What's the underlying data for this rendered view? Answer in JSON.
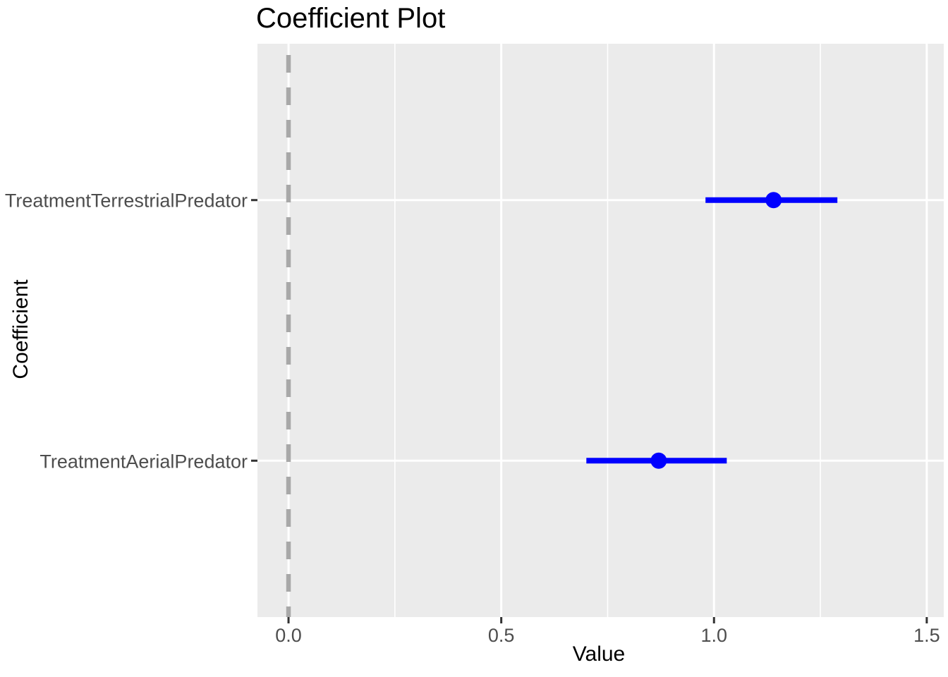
{
  "chart_data": {
    "type": "scatter",
    "variant": "coefficient-plot-with-error-bars",
    "title": "Coefficient Plot",
    "xlabel": "Value",
    "ylabel": "Coefficient",
    "categories": [
      "TreatmentTerrestrialPredator",
      "TreatmentAerialPredator"
    ],
    "series": [
      {
        "name": "estimate",
        "values": [
          1.14,
          0.87
        ]
      },
      {
        "name": "ci_low",
        "values": [
          0.98,
          0.7
        ]
      },
      {
        "name": "ci_high",
        "values": [
          1.29,
          1.03
        ]
      }
    ],
    "reference_line": {
      "x": 0,
      "style": "dashed"
    },
    "x_ticks": [
      0.0,
      0.5,
      1.0,
      1.5
    ],
    "x_tick_labels": [
      "0.0",
      "0.5",
      "1.0",
      "1.5"
    ],
    "x_minor_ticks": [
      0.25,
      0.75,
      1.25
    ],
    "xlim": [
      -0.073,
      1.54
    ],
    "grid": true,
    "legend_position": "none",
    "colors": {
      "point": "#0000FF",
      "error_bar": "#0000FF",
      "panel_background": "#EBEBEB",
      "gridline": "#FFFFFF",
      "reference_line": "#A8A8A8",
      "tick_label": "#4D4D4D",
      "tick_mark": "#333333",
      "title": "#000000",
      "axis_title": "#000000"
    }
  }
}
